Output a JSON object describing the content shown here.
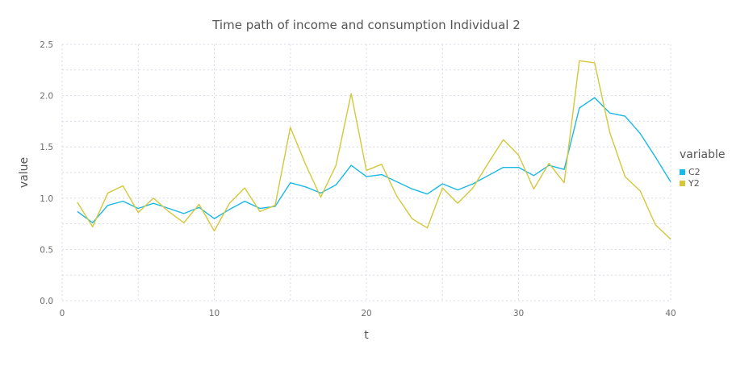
{
  "chart_data": {
    "type": "line",
    "title": "Time path of income and consumption Individual 2",
    "xlabel": "t",
    "ylabel": "value",
    "xlim": [
      0,
      40
    ],
    "ylim": [
      0.0,
      2.5
    ],
    "xticks": [
      0,
      10,
      20,
      30,
      40
    ],
    "yticks": [
      0.0,
      0.5,
      1.0,
      1.5,
      2.0,
      2.5
    ],
    "xtick_labels": [
      "0",
      "10",
      "20",
      "30",
      "40"
    ],
    "ytick_labels": [
      "0.0",
      "0.5",
      "1.0",
      "1.5",
      "2.0",
      "2.5"
    ],
    "grid": true,
    "legend": {
      "title": "variable",
      "placement": "right"
    },
    "x": [
      1,
      2,
      3,
      4,
      5,
      6,
      7,
      8,
      9,
      10,
      11,
      12,
      13,
      14,
      15,
      16,
      17,
      18,
      19,
      20,
      21,
      22,
      23,
      24,
      25,
      26,
      27,
      28,
      29,
      30,
      31,
      32,
      33,
      34,
      35,
      36,
      37,
      38,
      39,
      40
    ],
    "series": [
      {
        "name": "C2",
        "color": "#19b8e6",
        "values": [
          0.87,
          0.76,
          0.93,
          0.97,
          0.9,
          0.95,
          0.9,
          0.85,
          0.91,
          0.8,
          0.89,
          0.97,
          0.9,
          0.92,
          1.15,
          1.11,
          1.05,
          1.13,
          1.32,
          1.21,
          1.23,
          1.16,
          1.09,
          1.04,
          1.14,
          1.08,
          1.14,
          1.22,
          1.3,
          1.3,
          1.22,
          1.32,
          1.28,
          1.88,
          1.98,
          1.83,
          1.8,
          1.63,
          1.4,
          1.16
        ]
      },
      {
        "name": "Y2",
        "color": "#d4c83a",
        "values": [
          0.96,
          0.72,
          1.05,
          1.12,
          0.86,
          1.0,
          0.87,
          0.76,
          0.94,
          0.68,
          0.95,
          1.1,
          0.87,
          0.93,
          1.69,
          1.33,
          1.01,
          1.32,
          2.02,
          1.27,
          1.33,
          1.02,
          0.8,
          0.71,
          1.1,
          0.95,
          1.1,
          1.34,
          1.57,
          1.42,
          1.09,
          1.34,
          1.15,
          2.34,
          2.32,
          1.64,
          1.21,
          1.07,
          0.74,
          0.6
        ]
      }
    ]
  }
}
